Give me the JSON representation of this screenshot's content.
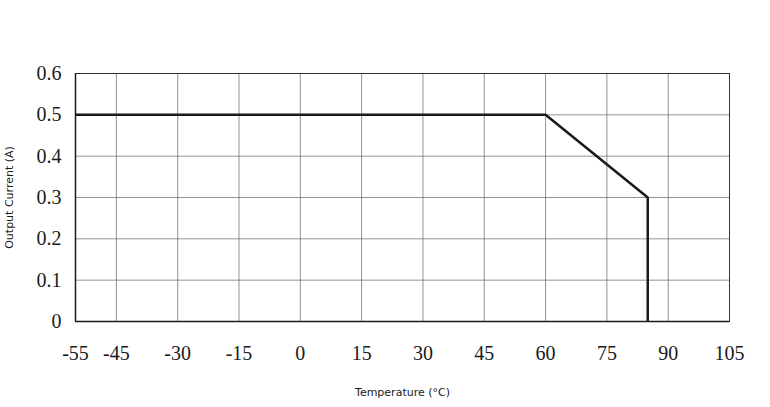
{
  "chart_data": {
    "type": "line",
    "x_label": "Temperature (°C)",
    "y_label": "Output Current (A)",
    "x": [
      -55,
      60,
      85,
      85
    ],
    "series": [
      {
        "name": "Output Current",
        "color": "#1a1a1a",
        "values": [
          0.5,
          0.5,
          0.3,
          0
        ]
      }
    ],
    "xlim": [
      -55,
      105
    ],
    "xticks": [
      -55,
      -45,
      -30,
      -15,
      0,
      15,
      30,
      45,
      60,
      75,
      90,
      105
    ],
    "ylim": [
      0,
      0.6
    ],
    "yticks": [
      0,
      0.1,
      0.2,
      0.3,
      0.4,
      0.5,
      0.6
    ],
    "grid": true
  }
}
